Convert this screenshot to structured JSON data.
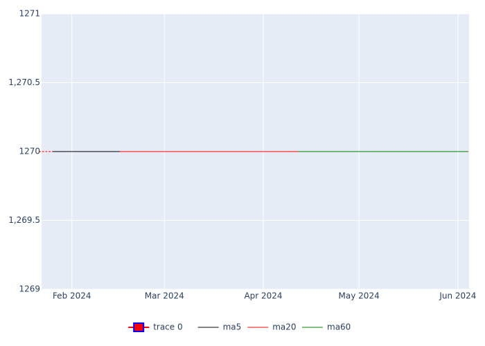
{
  "chart_data": {
    "type": "candlestick",
    "x": [
      "2024-01-22",
      "2024-01-23",
      "2024-01-24",
      "2024-01-25",
      "2024-01-26",
      "2024-01-29",
      "2024-01-30",
      "2024-01-31",
      "2024-02-01",
      "2024-02-02",
      "2024-02-05",
      "2024-02-06",
      "2024-02-07",
      "2024-02-08",
      "2024-02-09",
      "2024-02-12",
      "2024-02-13",
      "2024-02-14",
      "2024-02-15",
      "2024-02-16",
      "2024-02-19",
      "2024-02-20",
      "2024-02-21",
      "2024-02-22",
      "2024-02-23",
      "2024-02-26",
      "2024-02-27",
      "2024-02-28",
      "2024-02-29",
      "2024-03-01",
      "2024-03-04",
      "2024-03-05",
      "2024-03-06",
      "2024-03-07",
      "2024-03-08",
      "2024-03-11",
      "2024-03-12",
      "2024-03-13",
      "2024-03-14",
      "2024-03-15",
      "2024-03-18",
      "2024-03-19",
      "2024-03-20",
      "2024-03-21",
      "2024-03-22",
      "2024-03-25",
      "2024-03-26",
      "2024-03-27",
      "2024-03-28",
      "2024-03-29",
      "2024-04-01",
      "2024-04-02",
      "2024-04-03",
      "2024-04-04",
      "2024-04-05",
      "2024-04-08",
      "2024-04-09",
      "2024-04-10",
      "2024-04-11",
      "2024-04-12",
      "2024-04-15",
      "2024-04-16",
      "2024-04-17",
      "2024-04-18",
      "2024-04-19",
      "2024-04-22",
      "2024-04-23",
      "2024-04-24",
      "2024-04-25",
      "2024-04-26",
      "2024-04-29",
      "2024-04-30",
      "2024-05-01",
      "2024-05-02",
      "2024-05-03",
      "2024-05-06",
      "2024-05-07",
      "2024-05-08",
      "2024-05-09",
      "2024-05-10",
      "2024-05-13",
      "2024-05-14",
      "2024-05-15",
      "2024-05-16",
      "2024-05-17",
      "2024-05-20",
      "2024-05-21",
      "2024-05-22",
      "2024-05-23",
      "2024-05-24",
      "2024-05-27",
      "2024-05-28",
      "2024-05-29",
      "2024-05-30",
      "2024-05-31",
      "2024-06-03",
      "2024-06-04"
    ],
    "candle": {
      "name": "trace 0",
      "color": "#ff0000",
      "line_color": "#0000ff",
      "open": [
        1270,
        1270,
        1270,
        1270,
        1270,
        1270,
        1270,
        1270,
        1270,
        1270,
        1270,
        1270,
        1270,
        1270,
        1270,
        1270,
        1270,
        1270,
        1270,
        1270,
        1270,
        1270,
        1270,
        1270,
        1270,
        1270,
        1270,
        1270,
        1270,
        1270,
        1270,
        1270,
        1270,
        1270,
        1270,
        1270,
        1270,
        1270,
        1270,
        1270,
        1270,
        1270,
        1270,
        1270,
        1270,
        1270,
        1270,
        1270,
        1270,
        1270,
        1270,
        1270,
        1270,
        1270,
        1270,
        1270,
        1270,
        1270,
        1270,
        1270,
        1270,
        1270,
        1270,
        1270,
        1270,
        1270,
        1270,
        1270,
        1270,
        1270,
        1270,
        1270,
        1270,
        1270,
        1270,
        1270,
        1270,
        1270,
        1270,
        1270,
        1270,
        1270,
        1270,
        1270,
        1270,
        1270,
        1270,
        1270,
        1270,
        1270,
        1270,
        1270,
        1270,
        1270,
        1270,
        1270,
        1270
      ],
      "high": [
        1270,
        1270,
        1270,
        1270,
        1270,
        1270,
        1270,
        1270,
        1270,
        1270,
        1270,
        1270,
        1270,
        1270,
        1270,
        1270,
        1270,
        1270,
        1270,
        1270,
        1270,
        1270,
        1270,
        1270,
        1270,
        1270,
        1270,
        1270,
        1270,
        1270,
        1270,
        1270,
        1270,
        1270,
        1270,
        1270,
        1270,
        1270,
        1270,
        1270,
        1270,
        1270,
        1270,
        1270,
        1270,
        1270,
        1270,
        1270,
        1270,
        1270,
        1270,
        1270,
        1270,
        1270,
        1270,
        1270,
        1270,
        1270,
        1270,
        1270,
        1270,
        1270,
        1270,
        1270,
        1270,
        1270,
        1270,
        1270,
        1270,
        1270,
        1270,
        1270,
        1270,
        1270,
        1270,
        1270,
        1270,
        1270,
        1270,
        1270,
        1270,
        1270,
        1270,
        1270,
        1270,
        1270,
        1270,
        1270,
        1270,
        1270,
        1270,
        1270,
        1270,
        1270,
        1270,
        1270,
        1270
      ],
      "low": [
        1270,
        1270,
        1270,
        1270,
        1270,
        1270,
        1270,
        1270,
        1270,
        1270,
        1270,
        1270,
        1270,
        1270,
        1270,
        1270,
        1270,
        1270,
        1270,
        1270,
        1270,
        1270,
        1270,
        1270,
        1270,
        1270,
        1270,
        1270,
        1270,
        1270,
        1270,
        1270,
        1270,
        1270,
        1270,
        1270,
        1270,
        1270,
        1270,
        1270,
        1270,
        1270,
        1270,
        1270,
        1270,
        1270,
        1270,
        1270,
        1270,
        1270,
        1270,
        1270,
        1270,
        1270,
        1270,
        1270,
        1270,
        1270,
        1270,
        1270,
        1270,
        1270,
        1270,
        1270,
        1270,
        1270,
        1270,
        1270,
        1270,
        1270,
        1270,
        1270,
        1270,
        1270,
        1270,
        1270,
        1270,
        1270,
        1270,
        1270,
        1270,
        1270,
        1270,
        1270,
        1270,
        1270,
        1270,
        1270,
        1270,
        1270,
        1270,
        1270,
        1270,
        1270,
        1270,
        1270,
        1270
      ],
      "close": [
        1270,
        1270,
        1270,
        1270,
        1270,
        1270,
        1270,
        1270,
        1270,
        1270,
        1270,
        1270,
        1270,
        1270,
        1270,
        1270,
        1270,
        1270,
        1270,
        1270,
        1270,
        1270,
        1270,
        1270,
        1270,
        1270,
        1270,
        1270,
        1270,
        1270,
        1270,
        1270,
        1270,
        1270,
        1270,
        1270,
        1270,
        1270,
        1270,
        1270,
        1270,
        1270,
        1270,
        1270,
        1270,
        1270,
        1270,
        1270,
        1270,
        1270,
        1270,
        1270,
        1270,
        1270,
        1270,
        1270,
        1270,
        1270,
        1270,
        1270,
        1270,
        1270,
        1270,
        1270,
        1270,
        1270,
        1270,
        1270,
        1270,
        1270,
        1270,
        1270,
        1270,
        1270,
        1270,
        1270,
        1270,
        1270,
        1270,
        1270,
        1270,
        1270,
        1270,
        1270,
        1270,
        1270,
        1270,
        1270,
        1270,
        1270,
        1270,
        1270,
        1270,
        1270,
        1270,
        1270,
        1270
      ]
    },
    "series": [
      {
        "name": "ma5",
        "color": "#000000",
        "values": [
          null,
          null,
          null,
          null,
          1270,
          1270,
          1270,
          1270,
          1270,
          1270,
          1270,
          1270,
          1270,
          1270,
          1270,
          1270,
          1270,
          1270,
          1270,
          1270,
          1270,
          1270,
          1270,
          1270,
          1270,
          1270,
          1270,
          1270,
          1270,
          1270,
          1270,
          1270,
          1270,
          1270,
          1270,
          1270,
          1270,
          1270,
          1270,
          1270,
          1270,
          1270,
          1270,
          1270,
          1270,
          1270,
          1270,
          1270,
          1270,
          1270,
          1270,
          1270,
          1270,
          1270,
          1270,
          1270,
          1270,
          1270,
          1270,
          1270,
          1270,
          1270,
          1270,
          1270,
          1270,
          1270,
          1270,
          1270,
          1270,
          1270,
          1270,
          1270,
          1270,
          1270,
          1270,
          1270,
          1270,
          1270,
          1270,
          1270,
          1270,
          1270,
          1270,
          1270,
          1270,
          1270,
          1270,
          1270,
          1270,
          1270,
          1270,
          1270,
          1270,
          1270,
          1270,
          1270,
          1270
        ]
      },
      {
        "name": "ma20",
        "color": "#ff0000",
        "values": [
          null,
          null,
          null,
          null,
          null,
          null,
          null,
          null,
          null,
          null,
          null,
          null,
          null,
          null,
          null,
          null,
          null,
          null,
          null,
          1270,
          1270,
          1270,
          1270,
          1270,
          1270,
          1270,
          1270,
          1270,
          1270,
          1270,
          1270,
          1270,
          1270,
          1270,
          1270,
          1270,
          1270,
          1270,
          1270,
          1270,
          1270,
          1270,
          1270,
          1270,
          1270,
          1270,
          1270,
          1270,
          1270,
          1270,
          1270,
          1270,
          1270,
          1270,
          1270,
          1270,
          1270,
          1270,
          1270,
          1270,
          1270,
          1270,
          1270,
          1270,
          1270,
          1270,
          1270,
          1270,
          1270,
          1270,
          1270,
          1270,
          1270,
          1270,
          1270,
          1270,
          1270,
          1270,
          1270,
          1270,
          1270,
          1270,
          1270,
          1270,
          1270,
          1270,
          1270,
          1270,
          1270,
          1270,
          1270,
          1270,
          1270,
          1270,
          1270,
          1270,
          1270
        ]
      },
      {
        "name": "ma60",
        "color": "#008000",
        "values": [
          null,
          null,
          null,
          null,
          null,
          null,
          null,
          null,
          null,
          null,
          null,
          null,
          null,
          null,
          null,
          null,
          null,
          null,
          null,
          null,
          null,
          null,
          null,
          null,
          null,
          null,
          null,
          null,
          null,
          null,
          null,
          null,
          null,
          null,
          null,
          null,
          null,
          null,
          null,
          null,
          null,
          null,
          null,
          null,
          null,
          null,
          null,
          null,
          null,
          null,
          null,
          null,
          null,
          null,
          null,
          null,
          null,
          null,
          null,
          1270,
          1270,
          1270,
          1270,
          1270,
          1270,
          1270,
          1270,
          1270,
          1270,
          1270,
          1270,
          1270,
          1270,
          1270,
          1270,
          1270,
          1270,
          1270,
          1270,
          1270,
          1270,
          1270,
          1270,
          1270,
          1270,
          1270,
          1270,
          1270,
          1270,
          1270,
          1270,
          1270,
          1270,
          1270,
          1270,
          1270,
          1270
        ]
      }
    ],
    "xlim": [
      "2024-01-22T12:00:00Z",
      "2024-06-04T12:00:00Z"
    ],
    "xticks": [
      {
        "value": "2024-02-01",
        "label": "Feb 2024"
      },
      {
        "value": "2024-03-01",
        "label": "Mar 2024"
      },
      {
        "value": "2024-04-01",
        "label": "Apr 2024"
      },
      {
        "value": "2024-05-01",
        "label": "May 2024"
      },
      {
        "value": "2024-06-01",
        "label": "Jun 2024"
      }
    ],
    "ylim": [
      1269,
      1271
    ],
    "yticks": [
      1269,
      {
        "value": 1269.5,
        "label": "1,269.5"
      },
      1270,
      {
        "value": 1270.5,
        "label": "1,270.5"
      },
      1271
    ],
    "grid": true,
    "legend": "bottom"
  }
}
